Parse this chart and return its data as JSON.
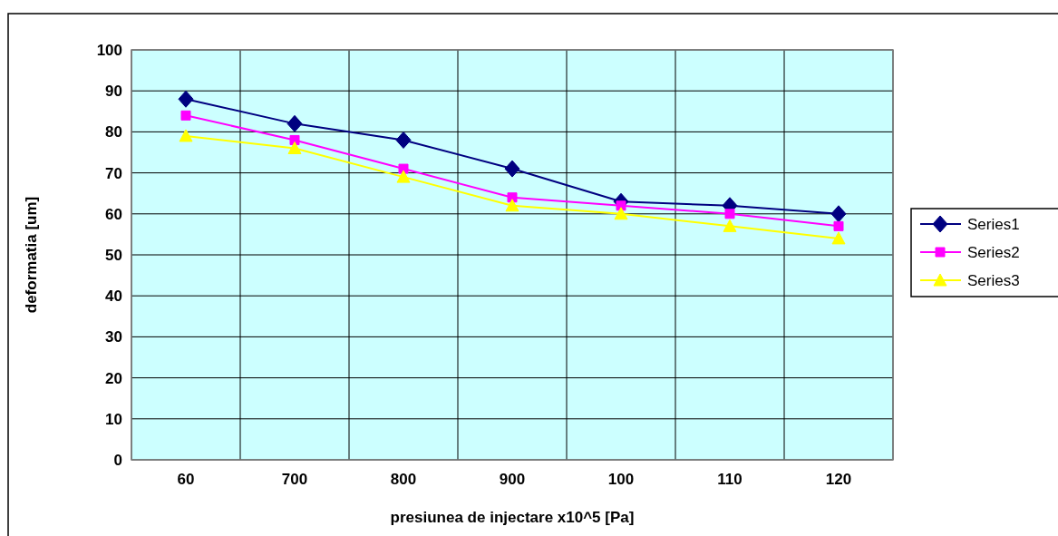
{
  "chart_data": {
    "type": "line",
    "xlabel": "presiunea de injectare x10^5 [Pa]",
    "ylabel": "deformatia [um]",
    "categories": [
      "60",
      "700",
      "800",
      "900",
      "100",
      "110",
      "120"
    ],
    "series": [
      {
        "name": "Series1",
        "color": "#000080",
        "marker": "diamond",
        "values": [
          88,
          82,
          78,
          71,
          63,
          62,
          60
        ]
      },
      {
        "name": "Series2",
        "color": "#ff00ff",
        "marker": "square",
        "values": [
          84,
          78,
          71,
          64,
          62,
          60,
          57
        ]
      },
      {
        "name": "Series3",
        "color": "#ffff00",
        "marker": "triangle",
        "values": [
          79,
          76,
          69,
          62,
          60,
          57,
          54
        ]
      }
    ],
    "ylim": [
      0,
      100
    ],
    "yticks": [
      0,
      10,
      20,
      30,
      40,
      50,
      60,
      70,
      80,
      90,
      100
    ],
    "grid": true,
    "legend": "right",
    "line_style": "solid"
  }
}
